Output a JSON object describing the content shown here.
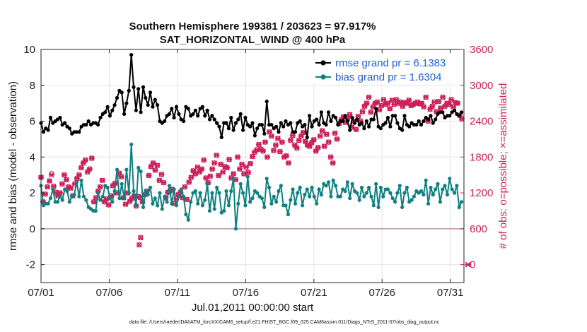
{
  "chart_data": {
    "type": "line",
    "title": [
      "Southern Hemisphere 199381 / 203623 = 97.917%",
      "SAT_HORIZONTAL_WIND @ 400 hPa"
    ],
    "xlabel": "Jul.01,2011 00:00:00 start",
    "ylabel": "rmse and bias (model - observation)",
    "y2label": "# of obs: o=possible; ×=assimilated",
    "footnote": "data file: /Users/raeder/DAI/ATM_forcXX/CAM6_setup/f.e21.FHIST_BGC.f09_025.CAM6assim.011/Diags_NTrS_2011-07/obs_diag_output.nc",
    "x_tick_labels": [
      "07/01",
      "07/06",
      "07/11",
      "07/16",
      "07/21",
      "07/26",
      "07/31"
    ],
    "x_tick_days": [
      1,
      6,
      11,
      16,
      21,
      26,
      31
    ],
    "xlim": [
      1,
      32
    ],
    "ylim": [
      -3,
      10
    ],
    "y_ticks": [
      -2,
      0,
      2,
      4,
      6,
      8,
      10
    ],
    "y2lim": [
      -300,
      3600
    ],
    "y2_ticks": [
      0,
      600,
      1200,
      1800,
      2400,
      3000,
      3600
    ],
    "grid": true,
    "legend_position": "top-right",
    "colors": {
      "rmse": "#000000",
      "bias": "#0e8080",
      "obs": "#cc1f5a",
      "zero": "#c8a8b4"
    },
    "series": [
      {
        "name": "rmse grand pr = 6.1383",
        "axis": "left",
        "values": [
          5.9,
          5.4,
          5.6,
          5.5,
          6.2,
          5.9,
          6.0,
          6.1,
          6.2,
          5.8,
          5.9,
          5.7,
          5.6,
          5.3,
          5.4,
          5.4,
          5.4,
          5.7,
          5.8,
          5.8,
          6.0,
          5.8,
          5.9,
          5.9,
          5.8,
          6.2,
          6.4,
          6.5,
          6.8,
          6.3,
          6.6,
          6.9,
          7.3,
          7.7,
          7.6,
          6.4,
          7.0,
          7.7,
          9.7,
          7.9,
          6.6,
          7.8,
          6.5,
          7.9,
          7.3,
          6.9,
          7.6,
          6.8,
          7.2,
          6.9,
          6.0,
          5.9,
          6.0,
          6.3,
          6.4,
          6.7,
          6.2,
          6.8,
          6.4,
          6.1,
          6.0,
          6.8,
          6.7,
          6.3,
          6.4,
          6.6,
          6.3,
          6.7,
          6.8,
          6.3,
          6.6,
          6.1,
          6.3,
          6.1,
          5.9,
          5.7,
          5.1,
          5.9,
          5.9,
          5.6,
          6.2,
          5.5,
          5.9,
          6.1,
          6.4,
          5.5,
          6.2,
          5.8,
          5.7,
          5.9,
          5.2,
          5.6,
          5.8,
          5.8,
          5.3,
          7.1,
          5.8,
          5.8,
          5.6,
          5.7,
          5.4,
          5.9,
          5.7,
          6.0,
          5.8,
          5.9,
          5.4,
          5.4,
          5.9,
          6.0,
          5.7,
          5.8,
          5.1,
          6.3,
          5.7,
          6.0,
          6.1,
          5.8,
          6.5,
          5.9,
          5.8,
          6.5,
          6.0,
          6.3,
          6.2,
          5.8,
          6.0,
          6.0,
          6.3,
          6.0,
          5.5,
          6.2,
          5.9,
          6.1,
          5.8,
          5.9,
          5.6,
          6.0,
          5.7,
          6.1,
          6.1,
          6.7,
          5.7,
          5.6,
          5.8,
          5.9,
          6.2,
          5.7,
          6.3,
          6.3,
          5.9,
          5.6,
          5.5,
          6.3,
          5.8,
          5.7,
          5.9,
          5.8,
          5.8,
          6.0,
          5.8,
          6.0,
          6.2,
          6.1,
          6.3,
          5.9,
          6.1,
          6.4,
          6.5,
          6.5,
          6.2,
          6.3,
          6.3,
          6.5,
          6.6,
          6.4,
          6.3,
          6.5
        ]
      },
      {
        "name": "bias grand pr = 1.6304",
        "axis": "left",
        "values": [
          2.4,
          1.3,
          1.4,
          1.4,
          1.7,
          2.2,
          1.5,
          1.5,
          1.8,
          1.6,
          2.2,
          2.1,
          1.5,
          1.8,
          1.9,
          2.6,
          1.8,
          2.7,
          1.8,
          1.6,
          1.2,
          1.1,
          1.0,
          1.0,
          2.0,
          1.6,
          1.8,
          2.4,
          2.3,
          1.7,
          1.5,
          2.1,
          3.3,
          1.7,
          2.5,
          1.7,
          3.3,
          2.0,
          4.7,
          2.1,
          1.3,
          3.4,
          3.2,
          1.2,
          2.1,
          1.9,
          2.3,
          1.4,
          1.7,
          1.3,
          2.0,
          1.1,
          1.8,
          1.5,
          2.4,
          1.4,
          2.2,
          1.3,
          1.8,
          2.2,
          1.8,
          0.8,
          0.5,
          1.5,
          2.0,
          2.1,
          1.4,
          2.0,
          1.3,
          1.6,
          2.5,
          1.0,
          2.0,
          1.1,
          2.3,
          2.0,
          0.9,
          1.0,
          2.1,
          1.3,
          2.1,
          2.8,
          0.0,
          1.4,
          2.5,
          2.0,
          1.3,
          2.9,
          1.5,
          1.7,
          2.1,
          2.0,
          1.8,
          1.7,
          1.2,
          2.8,
          2.3,
          1.4,
          1.8,
          1.5,
          2.1,
          2.4,
          1.3,
          1.3,
          0.8,
          1.6,
          2.2,
          1.4,
          2.0,
          2.3,
          1.3,
          1.9,
          2.2,
          1.8,
          2.3,
          1.8,
          1.4,
          2.2,
          1.9,
          2.5,
          2.4,
          2.6,
          1.8,
          2.7,
          2.4,
          1.8,
          1.8,
          2.2,
          2.1,
          2.6,
          1.7,
          2.5,
          2.1,
          2.0,
          1.6,
          2.3,
          1.8,
          2.0,
          2.3,
          1.8,
          1.3,
          2.5,
          1.2,
          2.3,
          1.8,
          2.2,
          2.2,
          2.0,
          1.7,
          1.5,
          2.0,
          2.4,
          1.2,
          2.0,
          2.3,
          1.5,
          1.6,
          1.8,
          2.1,
          2.0,
          2.1,
          1.9,
          2.7,
          1.4,
          2.3,
          1.9,
          2.2,
          2.5,
          1.5,
          2.2,
          2.4,
          1.9,
          2.8,
          2.2,
          2.0,
          2.4,
          1.2,
          1.5
        ]
      }
    ],
    "obs": {
      "name": "# of obs",
      "axis": "right",
      "possible": [
        1460,
        1050,
        1180,
        1300,
        1400,
        1520,
        1310,
        1210,
        1150,
        1200,
        1350,
        1500,
        1420,
        1300,
        1280,
        1150,
        1350,
        1440,
        1500,
        1620,
        1700,
        1750,
        1550,
        1600,
        1780,
        1050,
        1120,
        1230,
        1300,
        1410,
        1050,
        1100,
        1000,
        1150,
        1320,
        1360,
        1200,
        1530,
        1470,
        1120,
        1010,
        1200,
        1060,
        1110,
        1150,
        980,
        1140,
        1120,
        1050,
        1170,
        1230,
        1490,
        1640,
        1700,
        1580,
        1660,
        1410,
        1510,
        1370,
        1120,
        1210,
        1230,
        1260,
        1020,
        1100,
        1170,
        1210,
        1120,
        1300,
        1090,
        1380,
        1460,
        1570,
        1520,
        1630,
        1550,
        1600,
        1750,
        1450,
        1370,
        1480,
        1600,
        1700,
        1830,
        1490,
        1680,
        1550,
        1640,
        1620,
        1760,
        1450,
        1520,
        1420,
        1800,
        1600,
        1680,
        1520,
        1630,
        1540,
        1690,
        1810,
        1880,
        1920,
        2010,
        1930,
        1900,
        2050,
        1800,
        2220,
        2150,
        1910,
        2000,
        2110,
        1890,
        2050,
        1800,
        1820,
        1700,
        2080,
        2160,
        2000,
        1950,
        2080,
        2150,
        2210,
        2060,
        2000,
        1980,
        2040,
        2090,
        1900,
        1960,
        2150,
        2240,
        1980,
        2180,
        2050,
        1800,
        1700,
        2200,
        2100,
        2360,
        2420,
        2470,
        2380,
        2450,
        2510,
        2300,
        2400,
        2260,
        2480,
        2400,
        2560,
        2650,
        2700,
        2800,
        2550,
        2640,
        2700,
        2720,
        2590,
        2660,
        2760,
        2680,
        2700,
        2610,
        2750,
        2680,
        2760,
        2700,
        2720,
        2650,
        2710,
        2700,
        2750,
        2660,
        2680,
        2700,
        2720,
        2690,
        2700,
        2640,
        2800,
        2400,
        2600,
        2650,
        2720,
        2560,
        2730,
        2620,
        2800,
        2650,
        2700,
        2680,
        2760,
        2640,
        2710,
        2700,
        2500,
        2440
      ],
      "assimilated": [
        1460,
        1050,
        1180,
        1300,
        1400,
        1500,
        1310,
        1210,
        1150,
        1200,
        1350,
        1500,
        1420,
        1300,
        1280,
        1150,
        1350,
        1440,
        1500,
        1620,
        1700,
        1750,
        1550,
        1600,
        1780,
        1050,
        1120,
        1230,
        1300,
        1410,
        1050,
        1100,
        1000,
        1150,
        1320,
        1360,
        1200,
        1530,
        1470,
        1120,
        1010,
        1200,
        1060,
        1110,
        1150,
        980,
        1140,
        1120,
        1050,
        1170,
        1230,
        1490,
        1640,
        1700,
        1580,
        1660,
        1410,
        1510,
        1370,
        1120,
        1210,
        1230,
        1260,
        1020,
        1100,
        1170,
        1210,
        1120,
        1300,
        1090,
        1380,
        1460,
        1570,
        1520,
        1630,
        1550,
        1600,
        1750,
        1450,
        1370,
        1480,
        1600,
        1700,
        1830,
        1490,
        1680,
        1550,
        1640,
        1620,
        1760,
        1450,
        1520,
        1420,
        1800,
        1600,
        1680,
        1520,
        1630,
        1540,
        1690,
        1810,
        1880,
        1920,
        2010,
        1930,
        1900,
        2050,
        1800,
        2220,
        2150,
        1910,
        2000,
        2110,
        1890,
        2050,
        1800,
        1820,
        1700,
        2080,
        2160,
        2000,
        1950,
        2080,
        2150,
        2210,
        2060,
        2000,
        1980,
        2040,
        2090,
        1900,
        1960,
        2150,
        2240,
        1980,
        2180,
        2050,
        1800,
        1700,
        2200,
        2100,
        2360,
        2420,
        2470,
        2380,
        2450,
        2510,
        2300,
        2400,
        2260,
        2480,
        2400,
        2560,
        2650,
        2700,
        2800,
        2550,
        2640,
        2700,
        2720,
        2590,
        2660,
        2760,
        2680,
        2700,
        2610,
        2750,
        2680,
        2760,
        2700,
        2720,
        2650,
        2710,
        2700,
        2750,
        2660,
        2680,
        2700,
        2720,
        2690,
        2700,
        2640,
        2800,
        2400,
        2600,
        2650,
        2720,
        2560,
        2730,
        2620,
        2800,
        2650,
        2700,
        2680,
        2760,
        2640,
        2710,
        2700,
        2500,
        2440
      ],
      "outliers_possible": [
        {
          "day": 8.2,
          "value": 330
        },
        {
          "day": 8.3,
          "value": 450
        }
      ],
      "outliers_assimilated": [
        {
          "day": 32.3,
          "value": 0
        }
      ]
    }
  }
}
